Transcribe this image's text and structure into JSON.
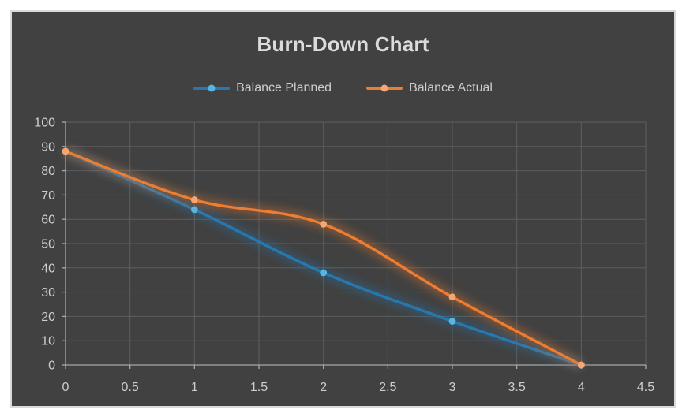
{
  "chart_data": {
    "type": "line",
    "title": "Burn-Down Chart",
    "xlabel": "",
    "ylabel": "",
    "x": [
      0,
      1,
      2,
      3,
      4
    ],
    "series": [
      {
        "name": "Balance Planned",
        "values": [
          88,
          64,
          38,
          18,
          0
        ],
        "line_color": "#2878b0",
        "marker_color": "#55b6e5"
      },
      {
        "name": "Balance Actual",
        "values": [
          88,
          68,
          58,
          28,
          0
        ],
        "line_color": "#ed7d31",
        "marker_color": "#f4a772"
      }
    ],
    "xlim": [
      0,
      4.5
    ],
    "ylim": [
      0,
      100
    ],
    "x_tick_values": [
      0,
      0.5,
      1,
      1.5,
      2,
      2.5,
      3,
      3.5,
      4,
      4.5
    ],
    "x_tick_labels": [
      "0",
      "0.5",
      "1",
      "1.5",
      "2",
      "2.5",
      "3",
      "3.5",
      "4",
      "4.5"
    ],
    "y_tick_values": [
      0,
      10,
      20,
      30,
      40,
      50,
      60,
      70,
      80,
      90,
      100
    ],
    "y_tick_labels": [
      "0",
      "10",
      "20",
      "30",
      "40",
      "50",
      "60",
      "70",
      "80",
      "90",
      "100"
    ],
    "grid": true,
    "smooth": true,
    "legend_position": "top"
  },
  "colors": {
    "page_background": "#ffffff",
    "chart_background": "#414141",
    "chart_border": "#d9d9d9",
    "gridline": "#5e5e5e",
    "axis_line": "#a8a8a8",
    "tick_label": "#cdcdcd",
    "title_text": "#dbdbdb",
    "legend_text": "#cdcdcd"
  }
}
